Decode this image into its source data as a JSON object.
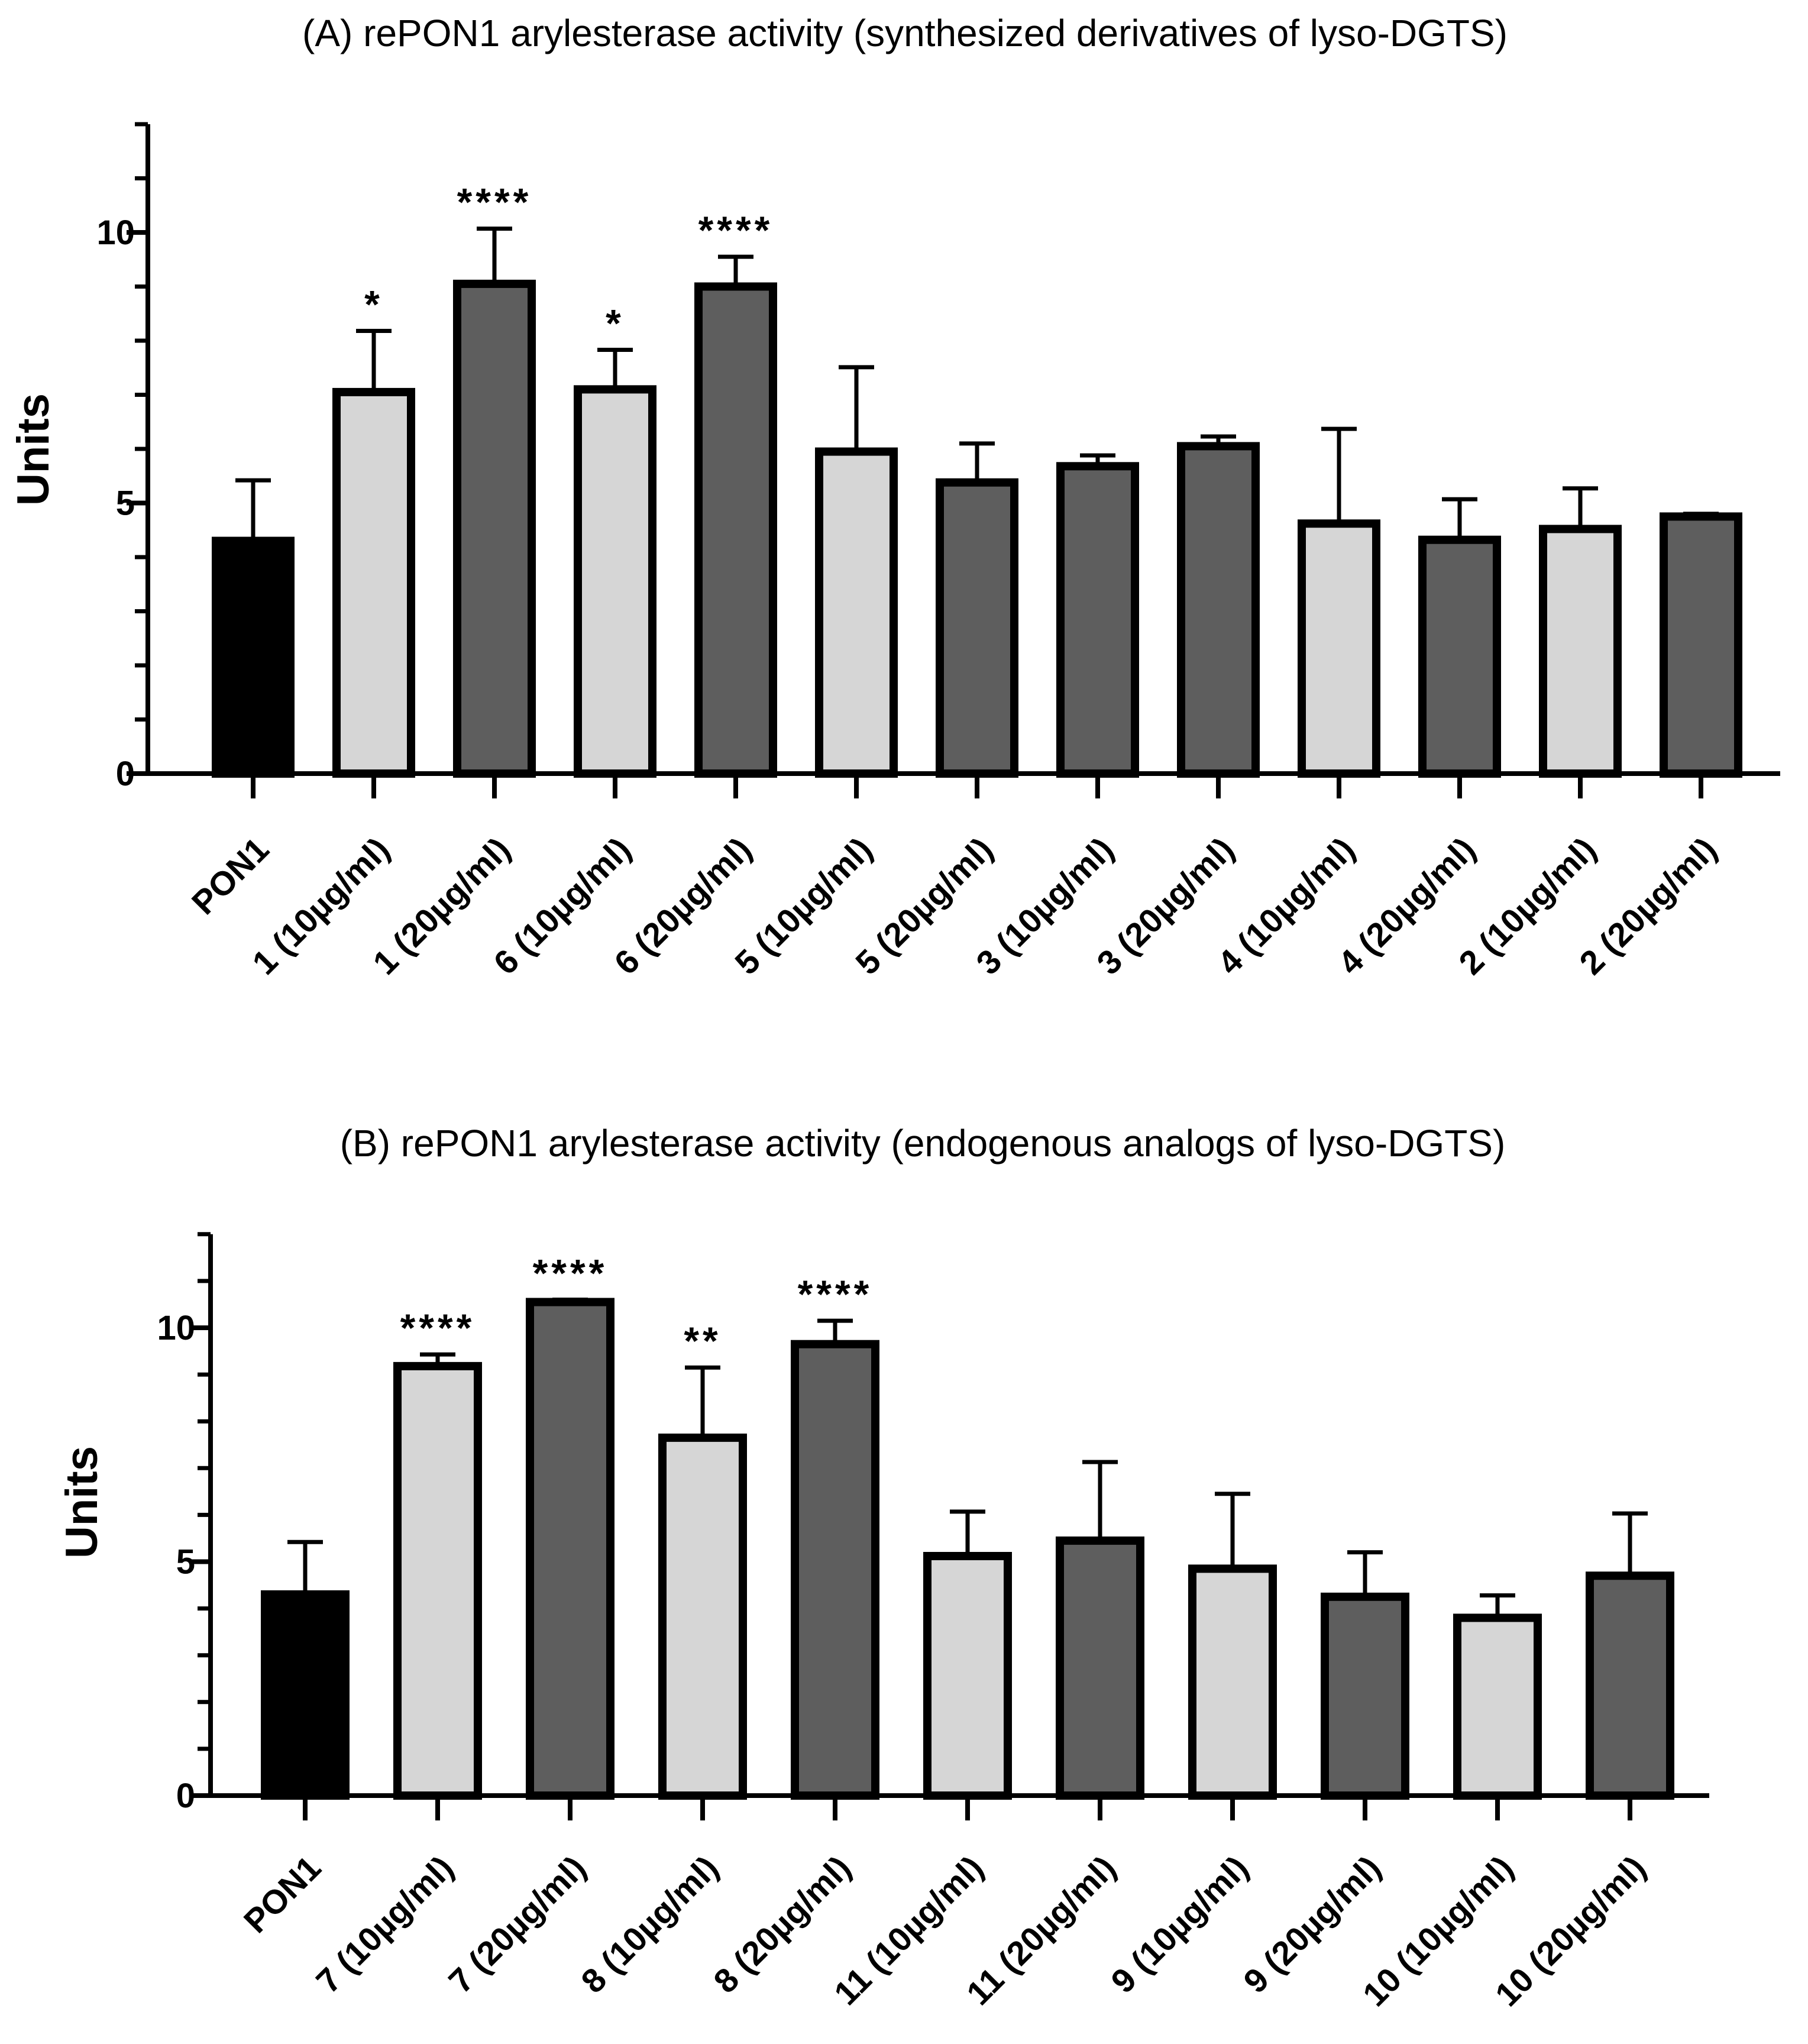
{
  "colors": {
    "control": "#000000",
    "low_dose": "#d6d6d6",
    "high_dose": "#5e5e5e",
    "outline": "#000000"
  },
  "chart_data": [
    {
      "type": "bar",
      "panel": "A",
      "title": "(A) rePON1 arylesterase activity (synthesized derivatives of lyso-DGTS)",
      "xlabel": "",
      "ylabel": "Units",
      "ylim": [
        0,
        12
      ],
      "yticks": [
        0,
        5,
        10
      ],
      "minor_tick_step": 1,
      "grid": false,
      "categories": [
        "PON1",
        "1 (10µg/ml)",
        "1 (20µg/ml)",
        "6 (10µg/ml)",
        "6 (20µg/ml)",
        "5 (10µg/ml)",
        "5 (20µg/ml)",
        "3 (10µg/ml)",
        "3 (20µg/ml)",
        "4 (10µg/ml)",
        "4 (20µg/ml)",
        "2 (10µg/ml)",
        "2 (20µg/ml)"
      ],
      "values": [
        4.3,
        7.05,
        9.05,
        7.1,
        9.0,
        5.95,
        5.38,
        5.68,
        6.05,
        4.62,
        4.32,
        4.52,
        4.75
      ],
      "errors": [
        1.12,
        1.13,
        1.02,
        0.73,
        0.55,
        1.56,
        0.72,
        0.2,
        0.18,
        1.75,
        0.75,
        0.75,
        0.05
      ],
      "significance": [
        "",
        "*",
        "****",
        "*",
        "****",
        "",
        "",
        "",
        "",
        "",
        "",
        "",
        ""
      ],
      "groups": [
        "control",
        "low",
        "high",
        "low",
        "high",
        "low",
        "high",
        "high",
        "high",
        "low",
        "high",
        "low",
        "high"
      ]
    },
    {
      "type": "bar",
      "panel": "B",
      "title": "(B)  rePON1 arylesterase activity (endogenous analogs of lyso-DGTS)",
      "xlabel": "",
      "ylabel": "Units",
      "ylim": [
        0,
        12
      ],
      "yticks": [
        0,
        5,
        10
      ],
      "minor_tick_step": 1,
      "grid": false,
      "categories": [
        "PON1",
        "7 (10µg/ml)",
        "7 (20µg/ml)",
        "8 (10µg/ml)",
        "8 (20µg/ml)",
        "11 (10µg/ml)",
        "11 (20µg/ml)",
        "9 (10µg/ml)",
        "9 (20µg/ml)",
        "10 (10µg/ml)",
        "10 (20µg/ml)"
      ],
      "values": [
        4.3,
        9.18,
        10.55,
        7.65,
        9.65,
        5.12,
        5.45,
        4.85,
        4.25,
        3.8,
        4.7
      ],
      "errors": [
        1.12,
        0.25,
        0.05,
        1.5,
        0.5,
        0.95,
        1.68,
        1.6,
        0.95,
        0.48,
        1.33
      ],
      "significance": [
        "",
        "****",
        "****",
        "**",
        "****",
        "",
        "",
        "",
        "",
        "",
        ""
      ],
      "groups": [
        "control",
        "low",
        "high",
        "low",
        "high",
        "low",
        "high",
        "low",
        "high",
        "low",
        "high"
      ]
    }
  ]
}
